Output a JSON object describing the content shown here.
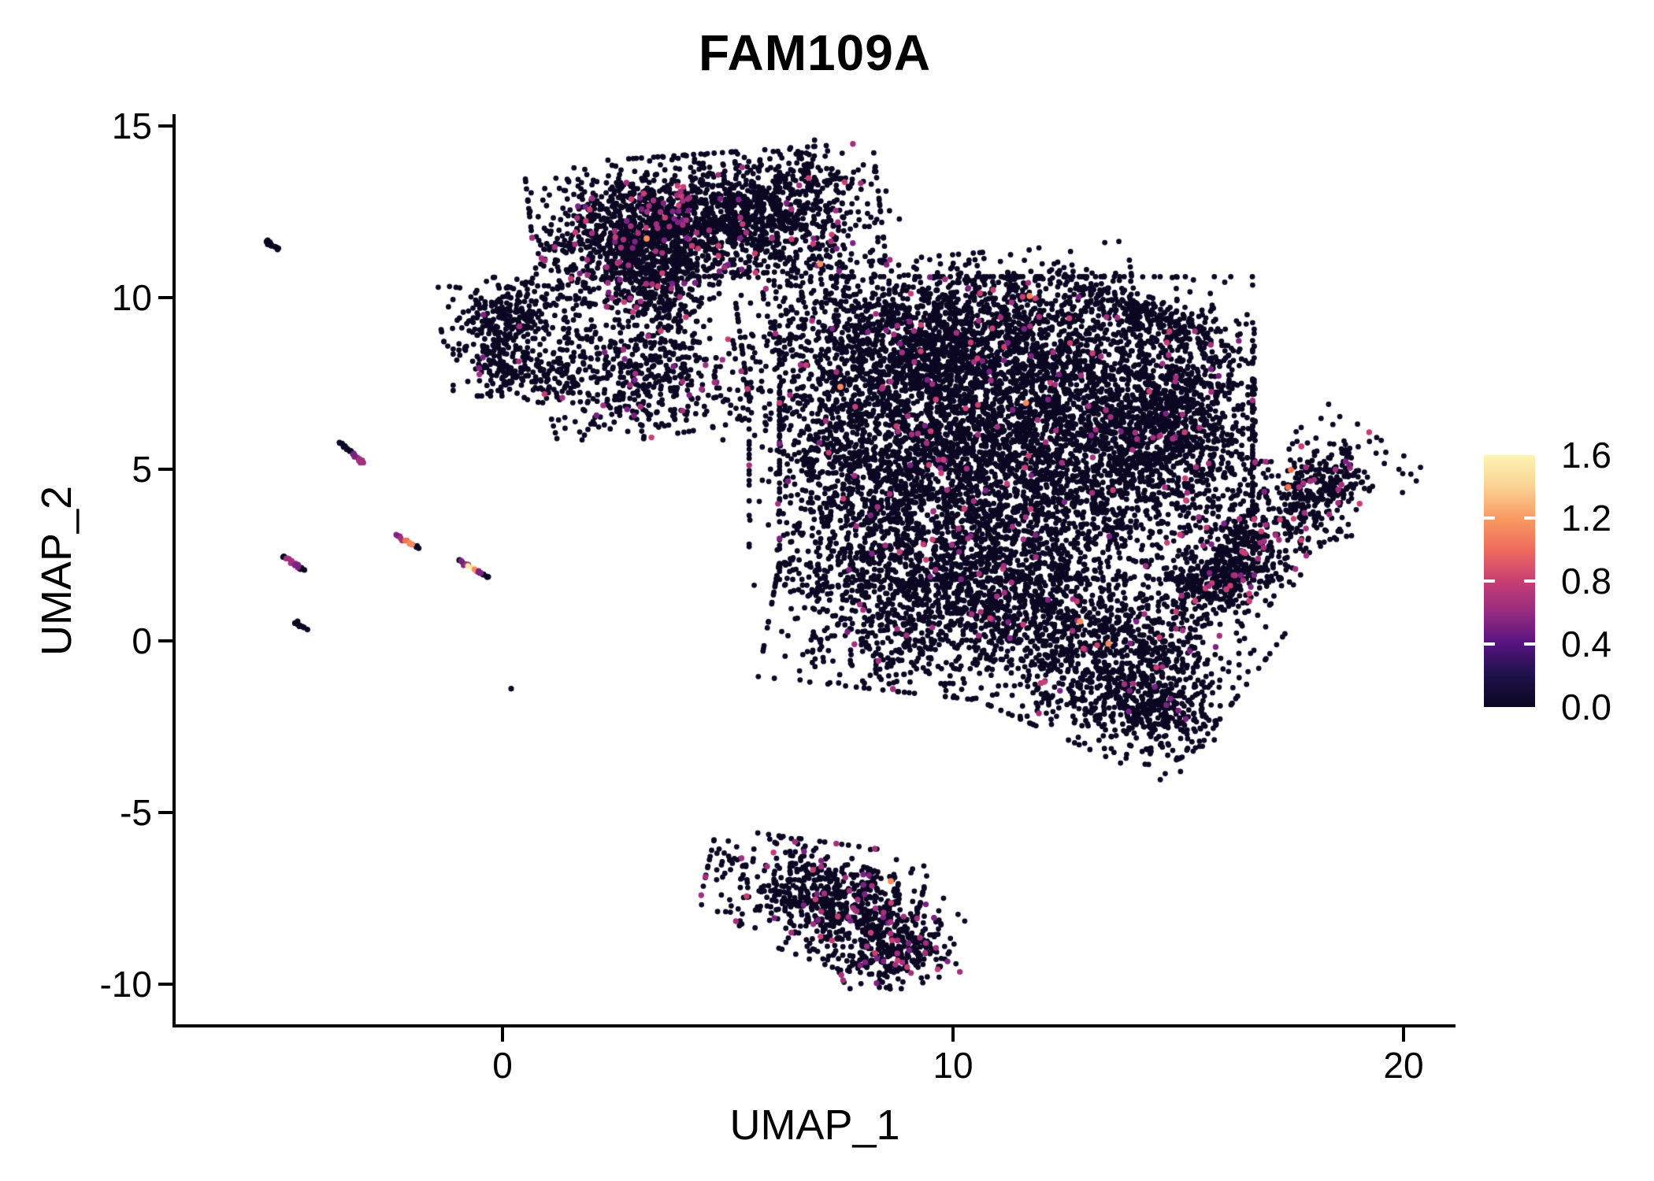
{
  "title": "FAM109A",
  "chart_data": {
    "type": "scatter",
    "title": "FAM109A",
    "xlabel": "UMAP_1",
    "ylabel": "UMAP_2",
    "x_ticks": [
      0,
      10,
      20
    ],
    "y_ticks": [
      15,
      10,
      5,
      0,
      -5,
      -10
    ],
    "x_range": [
      -7.3,
      21.2
    ],
    "y_range": [
      -11.3,
      15.4
    ],
    "grid": false,
    "legend_position": "right",
    "colorbar": {
      "label_values": [
        "1.6",
        "1.2",
        "0.8",
        "0.4",
        "0.0"
      ],
      "tick_values": [
        1.6,
        1.2,
        0.8,
        0.4,
        0.0
      ],
      "min": 0.0,
      "max": 1.6,
      "stops_top_to_bottom": [
        "#FCF4B6",
        "#FBD393",
        "#F99B63",
        "#F06B5D",
        "#C83E74",
        "#962B80",
        "#551380",
        "#1F114A",
        "#0A0722"
      ]
    },
    "palette": {
      "black": "#0C0722",
      "purple": "#7C2382",
      "magenta": "#A3307E",
      "pink": "#C83E74",
      "orange": "#F3744E",
      "salmon": "#F98C5E",
      "cream": "#FCEBA4"
    },
    "colored_weights": {
      "magenta": 0.48,
      "purple": 0.27,
      "pink": 0.25
    },
    "point_radius_px": 3.4,
    "clusters": [
      {
        "id": "top-main",
        "cx": 4.5,
        "cy": 12.4,
        "rx": 1.85,
        "ry": 0.85,
        "rot": 5,
        "n": 1400,
        "cf": 0.05
      },
      {
        "id": "top-left",
        "cx": 3.0,
        "cy": 11.4,
        "rx": 0.95,
        "ry": 0.85,
        "rot": -15,
        "n": 650,
        "cf": 0.05
      },
      {
        "id": "top-tail",
        "cx": 3.55,
        "cy": 10.1,
        "rx": 0.5,
        "ry": 0.75,
        "rot": 0,
        "n": 240,
        "cf": 0.04
      },
      {
        "id": "top-ne",
        "cx": 6.5,
        "cy": 12.8,
        "rx": 0.95,
        "ry": 0.75,
        "rot": 20,
        "n": 150,
        "cf": 0.03
      },
      {
        "id": "top-east",
        "cx": 5.9,
        "cy": 11.4,
        "rx": 0.8,
        "ry": 0.8,
        "rot": 0,
        "n": 90,
        "cf": 0.03
      },
      {
        "id": "bridge-top",
        "cx": 7.0,
        "cy": 10.6,
        "rx": 0.55,
        "ry": 0.85,
        "rot": 0,
        "n": 65,
        "cf": 0.02
      },
      {
        "id": "hook-a",
        "cx": 0.25,
        "cy": 9.6,
        "rx": 0.8,
        "ry": 0.5,
        "rot": 10,
        "n": 230,
        "cf": 0.012
      },
      {
        "id": "hook-b",
        "cx": -0.15,
        "cy": 8.5,
        "rx": 0.45,
        "ry": 0.65,
        "rot": 0,
        "n": 150,
        "cf": 0.012
      },
      {
        "id": "hook-c",
        "cx": 0.85,
        "cy": 7.75,
        "rx": 0.7,
        "ry": 0.38,
        "rot": -8,
        "n": 130,
        "cf": 0.015
      },
      {
        "id": "hook-sparse",
        "cx": 1.7,
        "cy": 8.9,
        "rx": 0.55,
        "ry": 0.55,
        "rot": 0,
        "n": 35,
        "cf": 0.0
      },
      {
        "id": "mid-blob",
        "cx": 3.1,
        "cy": 7.6,
        "rx": 1.05,
        "ry": 0.8,
        "rot": 12,
        "n": 430,
        "cf": 0.055
      },
      {
        "id": "bridge-mid",
        "cx": 5.5,
        "cy": 6.8,
        "rx": 0.8,
        "ry": 0.45,
        "rot": 0,
        "n": 40,
        "cf": 0.02
      },
      {
        "id": "main-core",
        "cx": 11.4,
        "cy": 6.2,
        "rx": 2.5,
        "ry": 2.1,
        "rot": 0,
        "n": 4000,
        "cf": 0.018
      },
      {
        "id": "main-top",
        "cx": 9.7,
        "cy": 9.0,
        "rx": 2.1,
        "ry": 1.05,
        "rot": 6,
        "n": 1400,
        "cf": 0.028
      },
      {
        "id": "main-left",
        "cx": 8.1,
        "cy": 5.4,
        "rx": 1.25,
        "ry": 1.8,
        "rot": 0,
        "n": 850,
        "cf": 0.02
      },
      {
        "id": "main-arc",
        "cx": 14.2,
        "cy": 9.5,
        "rx": 1.05,
        "ry": 0.35,
        "rot": -25,
        "n": 210,
        "cf": 0.03
      },
      {
        "id": "main-right",
        "cx": 14.9,
        "cy": 7.4,
        "rx": 0.85,
        "ry": 1.0,
        "rot": 0,
        "n": 420,
        "cf": 0.04
      },
      {
        "id": "main-right2",
        "cx": 14.5,
        "cy": 5.4,
        "rx": 1.05,
        "ry": 1.0,
        "rot": 0,
        "n": 500,
        "cf": 0.03
      },
      {
        "id": "main-bl",
        "cx": 9.4,
        "cy": 1.3,
        "rx": 1.6,
        "ry": 1.35,
        "rot": -8,
        "n": 1250,
        "cf": 0.025
      },
      {
        "id": "main-bc",
        "cx": 11.4,
        "cy": 2.2,
        "rx": 1.15,
        "ry": 1.05,
        "rot": 0,
        "n": 450,
        "cf": 0.02
      },
      {
        "id": "main-br",
        "cx": 13.5,
        "cy": -0.4,
        "rx": 1.45,
        "ry": 1.25,
        "rot": -30,
        "n": 1050,
        "cf": 0.022
      },
      {
        "id": "main-tail",
        "cx": 14.5,
        "cy": -2.0,
        "rx": 0.7,
        "ry": 0.6,
        "rot": -55,
        "n": 260,
        "cf": 0.03
      },
      {
        "id": "right-band",
        "cx": 16.9,
        "cy": 3.1,
        "rx": 1.8,
        "ry": 0.7,
        "rot": 48,
        "n": 650,
        "cf": 0.09
      },
      {
        "id": "right-dense",
        "cx": 15.9,
        "cy": 1.8,
        "rx": 0.6,
        "ry": 0.45,
        "rot": 20,
        "n": 210,
        "cf": 0.05
      },
      {
        "id": "right-tip",
        "cx": 18.2,
        "cy": 4.6,
        "rx": 0.45,
        "ry": 0.4,
        "rot": 35,
        "n": 110,
        "cf": 0.08
      },
      {
        "id": "bottom-a",
        "cx": 6.9,
        "cy": -7.2,
        "rx": 1.15,
        "ry": 0.65,
        "rot": -10,
        "n": 430,
        "cf": 0.05
      },
      {
        "id": "bottom-b",
        "cx": 8.0,
        "cy": -8.2,
        "rx": 1.0,
        "ry": 0.7,
        "rot": -25,
        "n": 400,
        "cf": 0.06
      },
      {
        "id": "bottom-tail",
        "cx": 8.65,
        "cy": -9.2,
        "rx": 0.45,
        "ry": 0.6,
        "rot": -70,
        "n": 190,
        "cf": 0.16
      }
    ],
    "streaks": [
      {
        "id": "streak-1",
        "x1": -5.25,
        "y1": 11.65,
        "x2": -5.0,
        "y2": 11.4,
        "n": 12,
        "seq": [
          "black"
        ]
      },
      {
        "id": "streak-2",
        "x1": -3.62,
        "y1": 5.8,
        "x2": -3.1,
        "y2": 5.2,
        "n": 22,
        "seq": [
          "black",
          "black",
          "black",
          "purple",
          "magenta"
        ]
      },
      {
        "id": "streak-3",
        "x1": -4.9,
        "y1": 2.5,
        "x2": -4.42,
        "y2": 2.05,
        "n": 20,
        "seq": [
          "black",
          "magenta",
          "magenta",
          "purple",
          "black"
        ]
      },
      {
        "id": "streak-4",
        "x1": -2.35,
        "y1": 3.1,
        "x2": -1.88,
        "y2": 2.72,
        "n": 16,
        "seq": [
          "purple",
          "magenta",
          "orange",
          "salmon",
          "black"
        ]
      },
      {
        "id": "streak-5",
        "x1": -0.98,
        "y1": 2.35,
        "x2": -0.3,
        "y2": 1.85,
        "n": 24,
        "seq": [
          "black",
          "purple",
          "magenta",
          "cream",
          "salmon",
          "purple",
          "black",
          "black"
        ]
      },
      {
        "id": "streak-6",
        "x1": -4.62,
        "y1": 0.55,
        "x2": -4.38,
        "y2": 0.33,
        "n": 8,
        "seq": [
          "black"
        ]
      },
      {
        "id": "lone-dot",
        "x1": 0.2,
        "y1": -1.4,
        "x2": 0.2,
        "y2": -1.4,
        "n": 1,
        "seq": [
          "black"
        ]
      }
    ],
    "highlights": [
      {
        "x": 3.2,
        "y": 11.72,
        "c": "salmon"
      },
      {
        "x": 7.05,
        "y": 10.98,
        "c": "salmon"
      },
      {
        "x": 11.7,
        "y": 10.05,
        "c": "salmon"
      },
      {
        "x": 7.5,
        "y": 7.4,
        "c": "salmon"
      },
      {
        "x": 11.62,
        "y": 6.93,
        "c": "salmon"
      },
      {
        "x": 12.82,
        "y": 0.57,
        "c": "salmon"
      },
      {
        "x": 13.45,
        "y": -0.08,
        "c": "salmon"
      },
      {
        "x": 17.5,
        "y": 4.98,
        "c": "orange"
      },
      {
        "x": 17.44,
        "y": 4.48,
        "c": "orange"
      },
      {
        "x": 8.62,
        "y": -7.0,
        "c": "salmon"
      }
    ]
  }
}
